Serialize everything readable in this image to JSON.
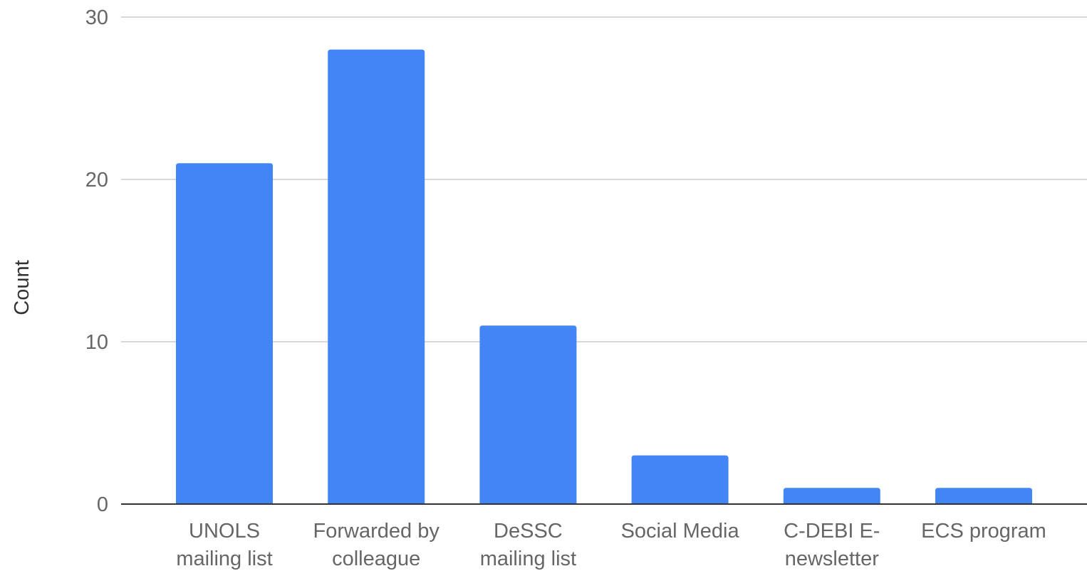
{
  "chart_data": {
    "type": "bar",
    "categories": [
      [
        "UNOLS",
        "mailing list"
      ],
      [
        "Forwarded by",
        "colleague"
      ],
      [
        "DeSSC",
        "mailing list"
      ],
      [
        "Social Media"
      ],
      [
        "C-DEBI E-",
        "newsletter"
      ],
      [
        "ECS program"
      ]
    ],
    "values": [
      21,
      28,
      11,
      3,
      1,
      1
    ],
    "ylabel": "Count",
    "ylim": [
      0,
      30
    ],
    "yticks": [
      0,
      10,
      20,
      30
    ],
    "grid": true,
    "legend": "none",
    "bar_color": "#4285f4",
    "grid_color": "#cccccc",
    "axis_color": "#333333"
  }
}
